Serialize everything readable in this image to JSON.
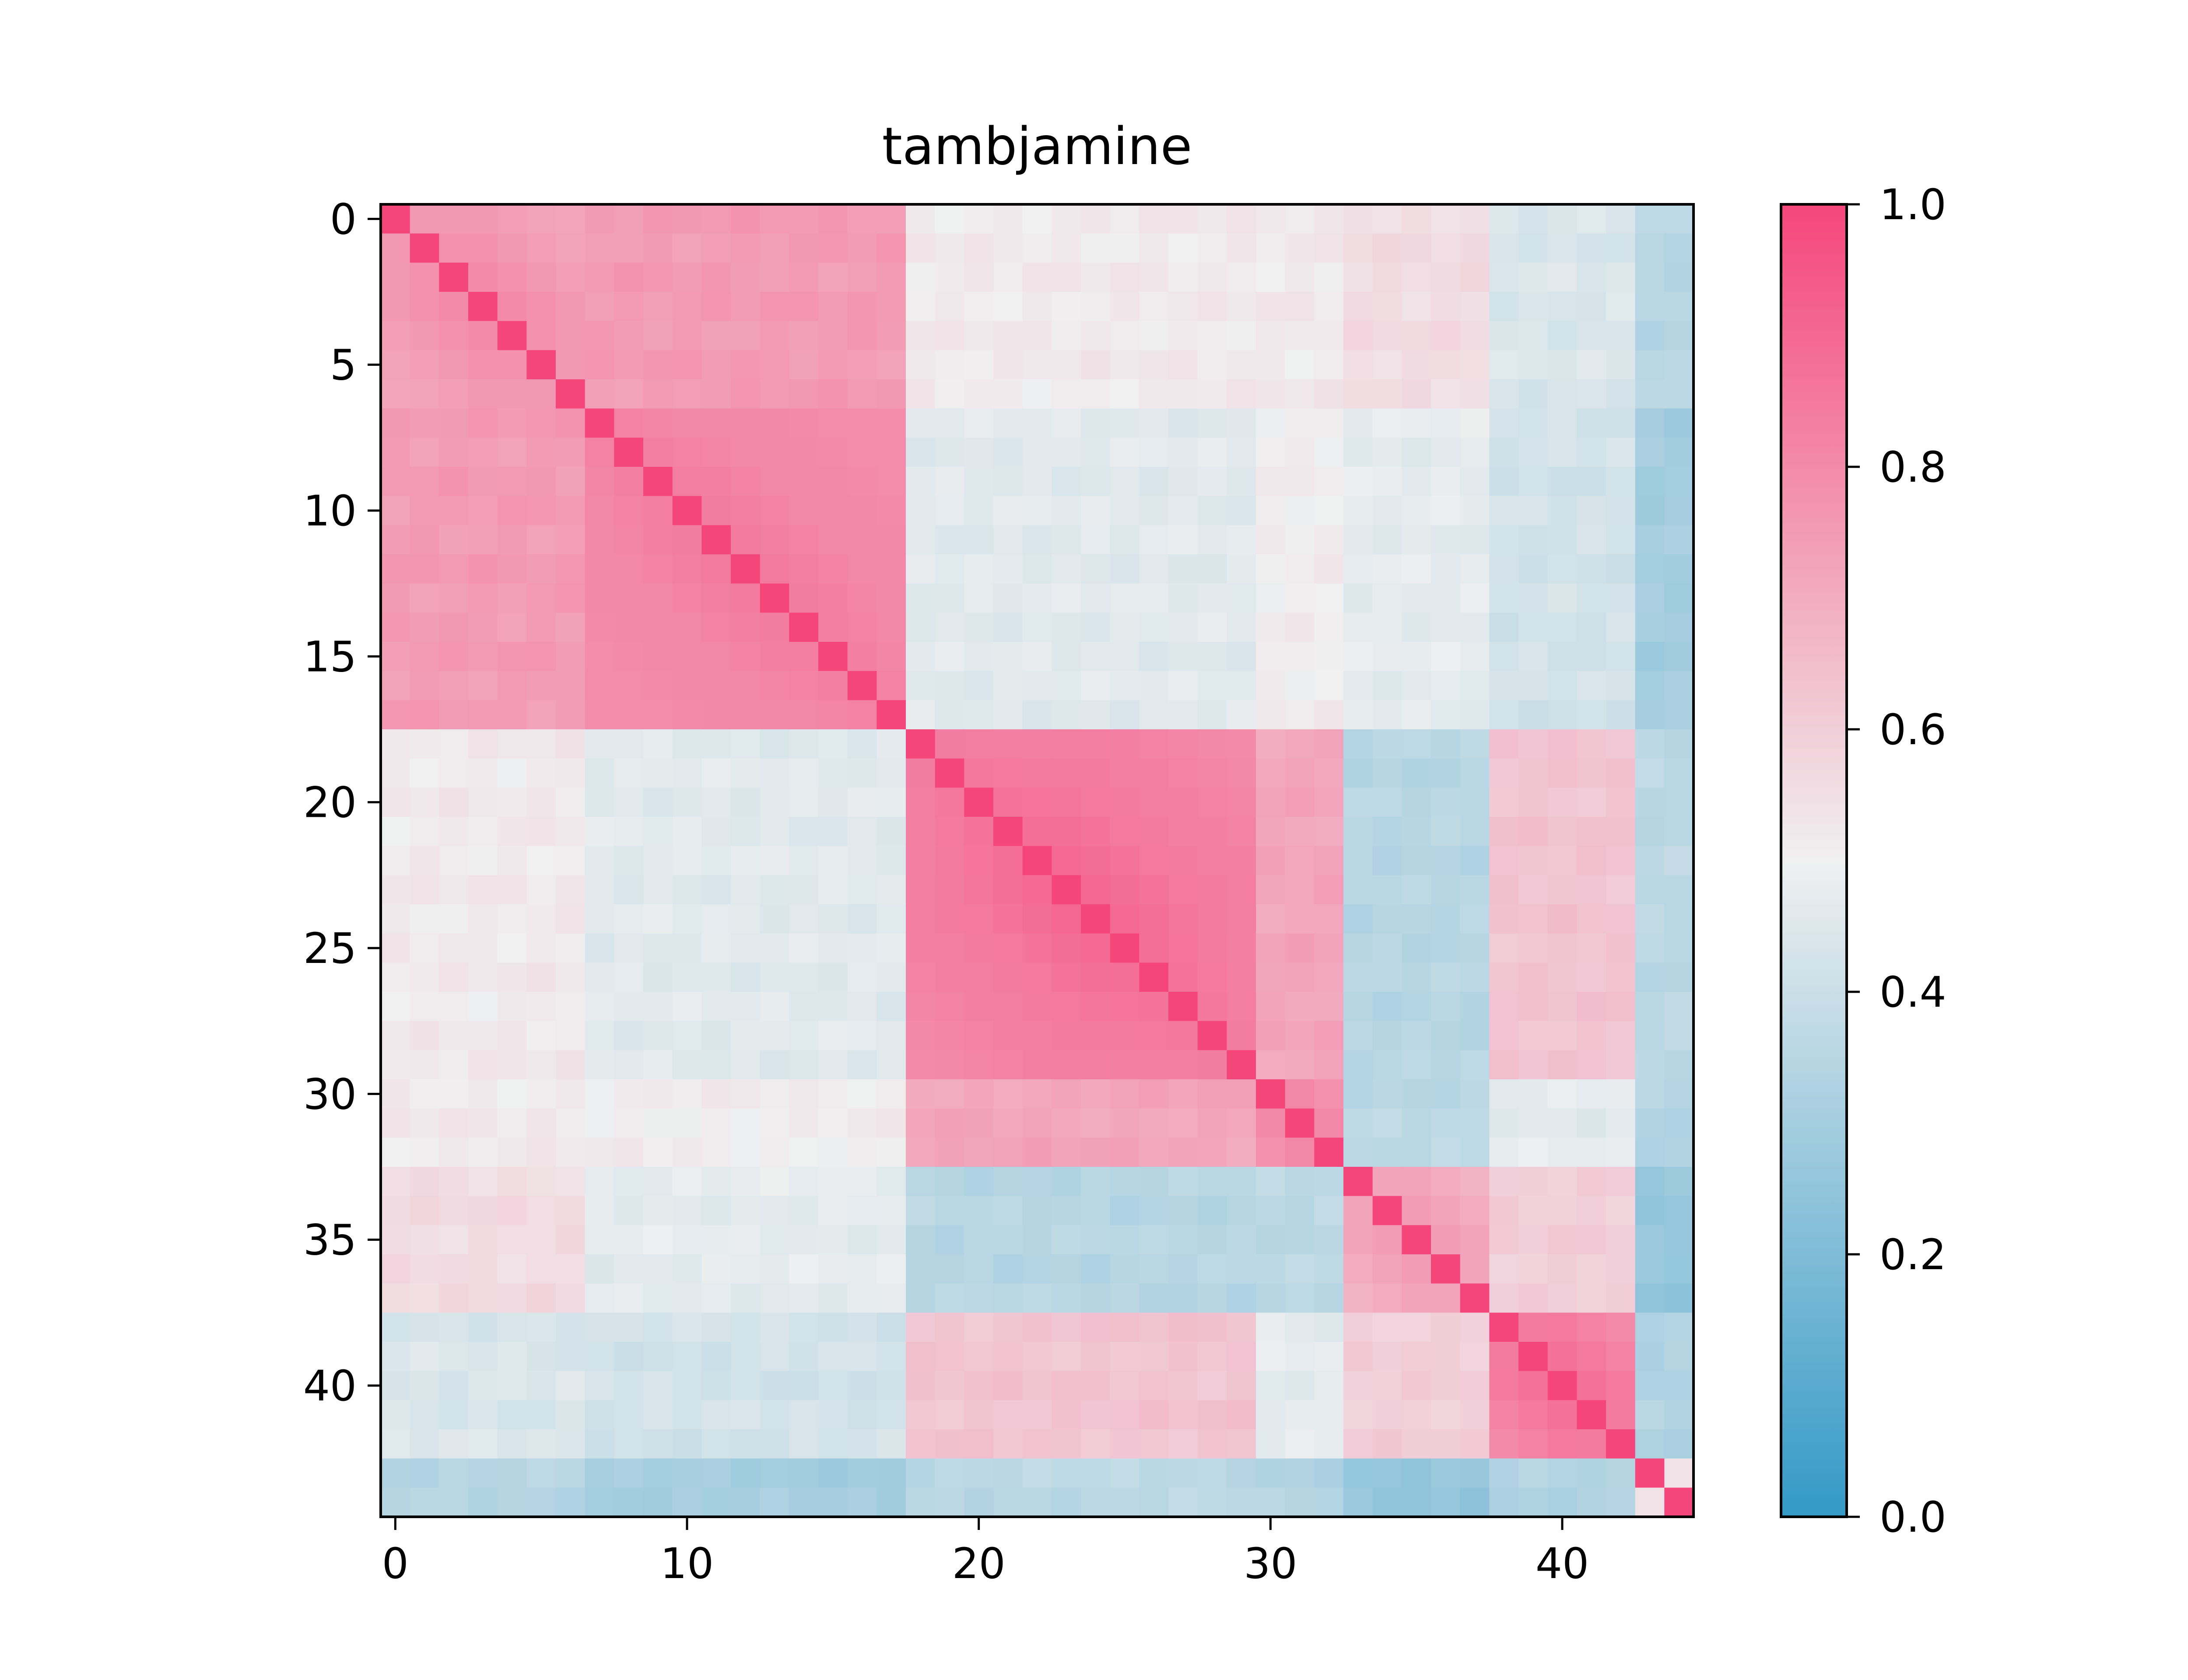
{
  "chart_data": {
    "type": "heatmap",
    "title": "tambjamine",
    "n": 45,
    "x_ticks": [
      0,
      10,
      20,
      30,
      40
    ],
    "y_ticks": [
      0,
      5,
      10,
      15,
      20,
      25,
      30,
      35,
      40
    ],
    "colorbar": {
      "ticks": [
        "0.0",
        "0.2",
        "0.4",
        "0.6",
        "0.8",
        "1.0"
      ],
      "range": [
        0,
        1
      ],
      "colors": [
        "#3399c6",
        "#f0f0f0",
        "#f5467c"
      ]
    },
    "clusters": [
      {
        "start": 0,
        "end": 6,
        "within": 0.76,
        "spread": 0.06
      },
      {
        "start": 7,
        "end": 17,
        "within": 0.83,
        "spread": 0.03
      },
      {
        "start": 18,
        "end": 29,
        "within": 0.84,
        "spread": 0.08
      },
      {
        "start": 30,
        "end": 32,
        "within": 0.8,
        "spread": 0.04
      },
      {
        "start": 33,
        "end": 37,
        "within": 0.72,
        "spread": 0.05
      },
      {
        "start": 38,
        "end": 42,
        "within": 0.84,
        "spread": 0.06
      },
      {
        "start": 43,
        "end": 44,
        "within": 0.55,
        "spread": 0.0
      }
    ],
    "between_clusters": [
      [
        1.0,
        0.75,
        0.52,
        0.52,
        0.56,
        0.44,
        0.35
      ],
      [
        0.75,
        1.0,
        0.46,
        0.51,
        0.47,
        0.42,
        0.3
      ],
      [
        0.52,
        0.46,
        1.0,
        0.72,
        0.35,
        0.63,
        0.36
      ],
      [
        0.52,
        0.51,
        0.72,
        1.0,
        0.36,
        0.47,
        0.34
      ],
      [
        0.56,
        0.47,
        0.35,
        0.36,
        1.0,
        0.6,
        0.26
      ],
      [
        0.44,
        0.42,
        0.63,
        0.47,
        0.6,
        1.0,
        0.33
      ],
      [
        0.35,
        0.3,
        0.36,
        0.34,
        0.26,
        0.33,
        1.0
      ]
    ],
    "diagonal": 1.0
  }
}
